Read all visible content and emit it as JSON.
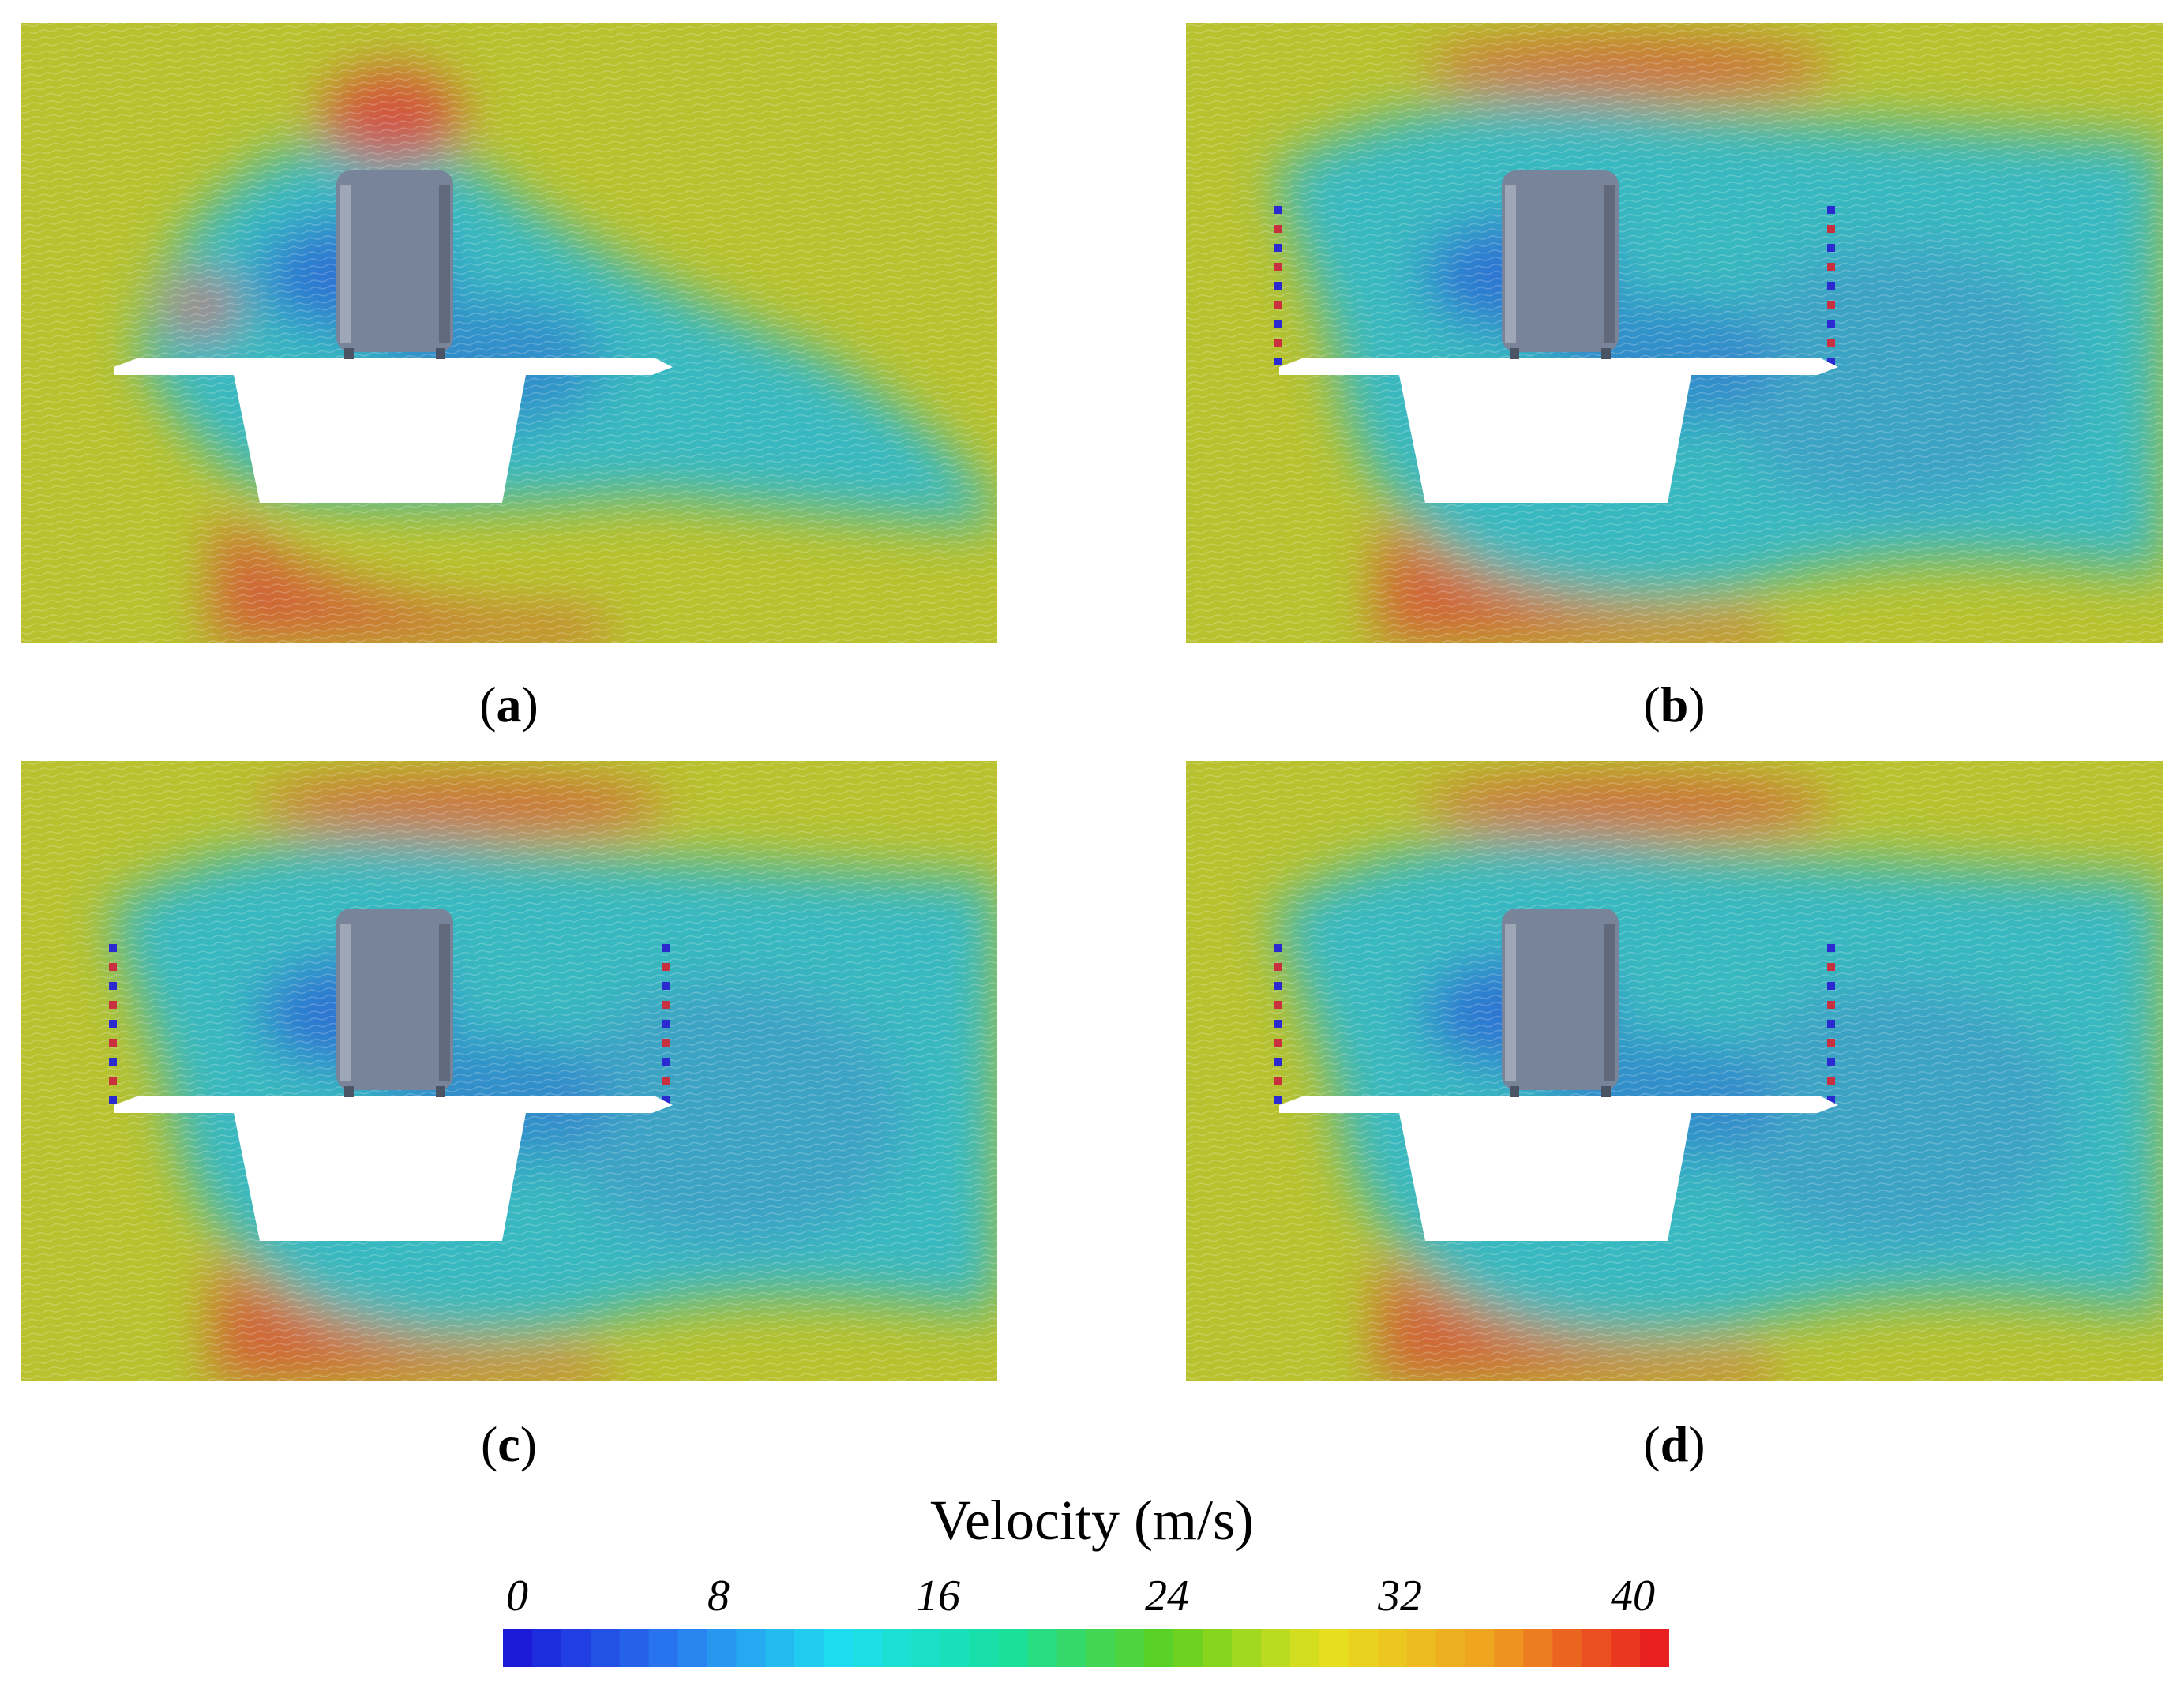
{
  "panels": [
    {
      "id": "a",
      "caption_open": "(",
      "caption_letter": "a",
      "caption_close": ")",
      "variant": "plain"
    },
    {
      "id": "b",
      "caption_open": "(",
      "caption_letter": "b",
      "caption_close": ")",
      "variant": "barrier"
    },
    {
      "id": "c",
      "caption_open": "(",
      "caption_letter": "c",
      "caption_close": ")",
      "variant": "barrier"
    },
    {
      "id": "d",
      "caption_open": "(",
      "caption_letter": "d",
      "caption_close": ")",
      "variant": "barrier"
    }
  ],
  "colorbar": {
    "title": "Velocity (m/s)",
    "min": 0,
    "max": 40,
    "ticks": [
      "0",
      "8",
      "16",
      "24",
      "32",
      "40"
    ],
    "colors": [
      "#1a1ad8",
      "#2a7ef0",
      "#1fe0f0",
      "#18e0a0",
      "#5ed020",
      "#e8e020",
      "#f0a020",
      "#e82020"
    ]
  },
  "colors": {
    "freestream": "#b8c22e",
    "highspeed": "#d8443a",
    "wake": "#38b8c0",
    "lowspeed": "#2a5ad8",
    "train": "#78849a",
    "bridge": "#ffffff"
  }
}
